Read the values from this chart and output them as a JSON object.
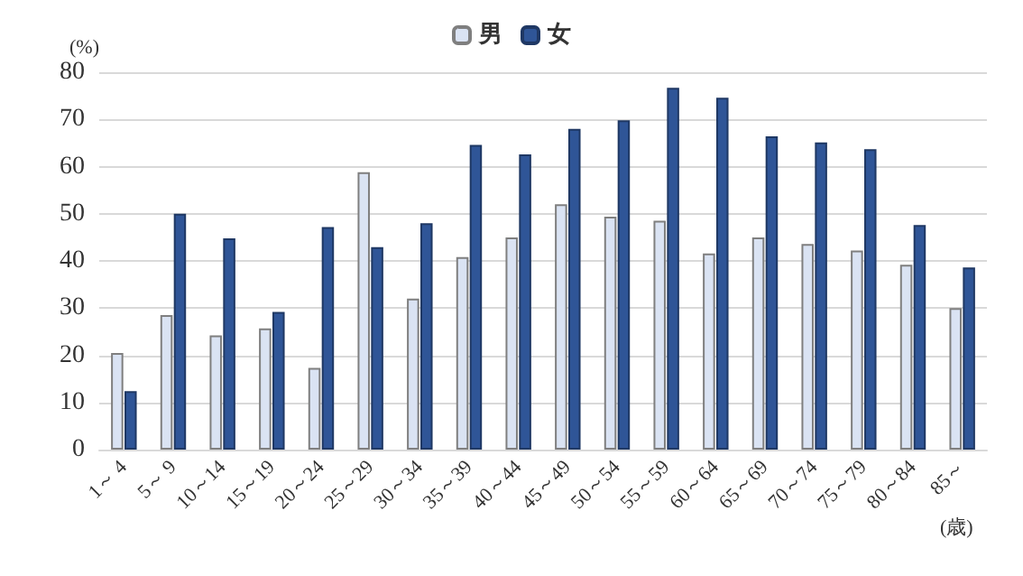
{
  "chart_data": {
    "type": "bar",
    "ylabel": "(%)",
    "xlabel": "(歳)",
    "categories": [
      "1～ 4",
      "5～ 9",
      "10～14",
      "15～19",
      "20～24",
      "25～29",
      "30～34",
      "35～39",
      "40～44",
      "45～49",
      "50～54",
      "55～59",
      "60～64",
      "65～69",
      "70～74",
      "75～79",
      "80～84",
      "85～"
    ],
    "series": [
      {
        "name": "男",
        "color": "#dae3f3",
        "values": [
          20.5,
          28.5,
          24.2,
          25.7,
          17.3,
          58.8,
          32,
          40.8,
          45,
          52,
          49.4,
          48.5,
          41.6,
          45,
          43.6,
          42.2,
          39.2,
          30
        ]
      },
      {
        "name": "女",
        "color": "#2f5597",
        "values": [
          12.4,
          50,
          44.8,
          29.2,
          47.2,
          42.9,
          48,
          64.6,
          62.6,
          68,
          69.8,
          76.7,
          74.6,
          66.4,
          65.1,
          63.7,
          47.6,
          38.6
        ]
      }
    ],
    "ylim": [
      0,
      80
    ],
    "yticks": [
      0,
      10,
      20,
      30,
      40,
      50,
      60,
      70,
      80
    ],
    "grid": "y",
    "legend": "top"
  }
}
